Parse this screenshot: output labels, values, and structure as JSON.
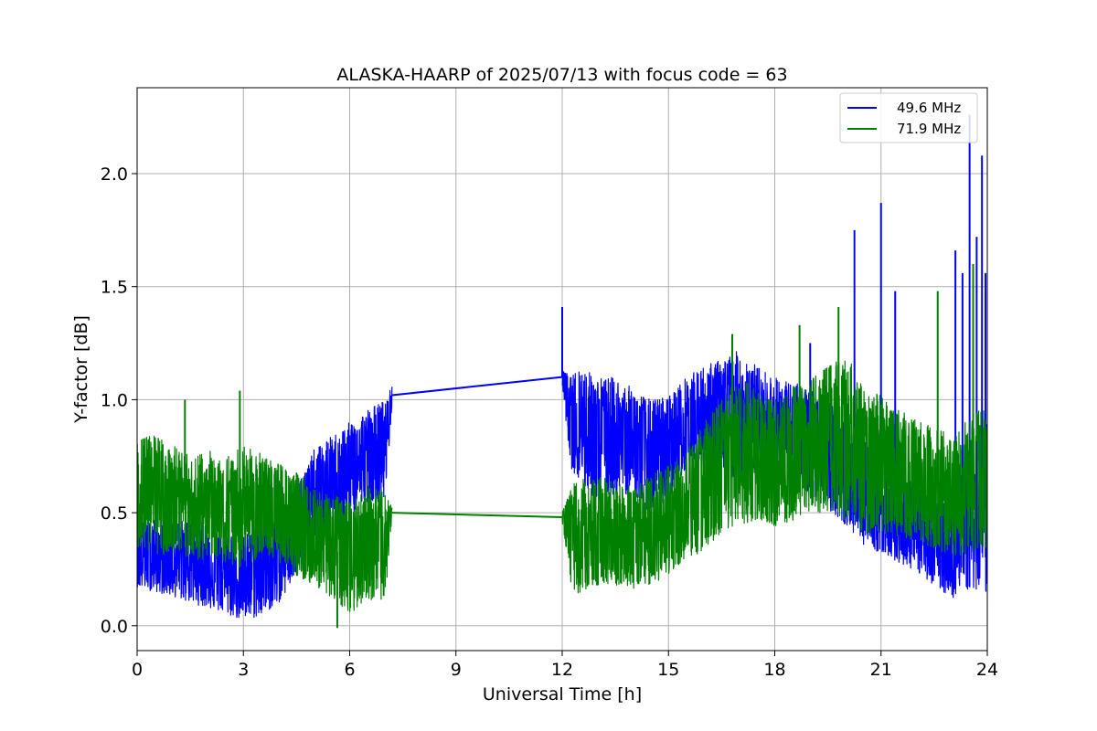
{
  "chart_data": {
    "type": "line",
    "title": "ALASKA-HAARP of 2025/07/13 with focus code = 63",
    "xlabel": "Universal Time [h]",
    "ylabel": "Y-factor [dB]",
    "xlim": [
      0,
      24
    ],
    "ylim": [
      -0.11,
      2.38
    ],
    "xticks": [
      0,
      3,
      6,
      9,
      12,
      15,
      18,
      21,
      24
    ],
    "xtick_labels": [
      "0",
      "3",
      "6",
      "9",
      "12",
      "15",
      "18",
      "21",
      "24"
    ],
    "yticks": [
      0.0,
      0.5,
      1.0,
      1.5,
      2.0
    ],
    "ytick_labels": [
      "0.0",
      "0.5",
      "1.0",
      "1.5",
      "2.0"
    ],
    "grid": true,
    "legend_position": "top-right",
    "series": [
      {
        "name": "49.6 MHz",
        "color": "#0000ff",
        "x": [
          0.0,
          0.5,
          1.0,
          1.5,
          2.0,
          2.5,
          3.0,
          3.5,
          4.0,
          4.5,
          5.0,
          5.5,
          6.0,
          6.5,
          7.0,
          7.2,
          12.0,
          12.25,
          12.5,
          13.0,
          13.5,
          14.0,
          14.5,
          15.0,
          15.5,
          16.0,
          16.5,
          17.0,
          17.5,
          18.0,
          18.5,
          19.0,
          19.5,
          20.0,
          20.5,
          21.0,
          21.5,
          22.0,
          22.5,
          23.0,
          23.5,
          24.0
        ],
        "y": [
          0.3,
          0.32,
          0.28,
          0.3,
          0.27,
          0.25,
          0.22,
          0.26,
          0.28,
          0.4,
          0.55,
          0.62,
          0.68,
          0.74,
          0.8,
          1.02,
          1.1,
          0.88,
          0.92,
          0.85,
          0.84,
          0.8,
          0.74,
          0.78,
          0.88,
          0.92,
          0.94,
          0.95,
          0.92,
          0.88,
          0.86,
          0.84,
          0.78,
          0.68,
          0.58,
          0.52,
          0.46,
          0.4,
          0.35,
          0.32,
          0.5,
          0.52
        ],
        "y_lower": [
          0.17,
          0.15,
          0.13,
          0.1,
          0.08,
          0.05,
          0.02,
          0.04,
          0.1,
          0.22,
          0.35,
          0.42,
          0.48,
          0.55,
          0.55,
          0.98,
          1.06,
          0.7,
          0.62,
          0.55,
          0.58,
          0.58,
          0.5,
          0.56,
          0.7,
          0.7,
          0.68,
          0.62,
          0.68,
          0.66,
          0.62,
          0.58,
          0.52,
          0.44,
          0.36,
          0.32,
          0.28,
          0.24,
          0.18,
          0.12,
          0.16,
          0.14
        ],
        "y_upper": [
          0.45,
          0.48,
          0.45,
          0.48,
          0.45,
          0.44,
          0.4,
          0.45,
          0.5,
          0.62,
          0.78,
          0.84,
          0.9,
          0.96,
          1.0,
          1.06,
          1.14,
          1.1,
          1.15,
          1.1,
          1.1,
          1.05,
          1.0,
          1.02,
          1.1,
          1.15,
          1.18,
          1.22,
          1.15,
          1.1,
          1.08,
          1.05,
          1.0,
          0.92,
          0.82,
          0.75,
          0.7,
          0.62,
          0.55,
          0.55,
          0.8,
          0.9
        ],
        "spikes": [
          [
            12.0,
            1.41
          ],
          [
            19.0,
            1.25
          ],
          [
            20.25,
            1.75
          ],
          [
            21.0,
            1.87
          ],
          [
            21.4,
            1.48
          ],
          [
            23.1,
            1.66
          ],
          [
            23.3,
            1.56
          ],
          [
            23.5,
            2.26
          ],
          [
            23.7,
            1.72
          ],
          [
            23.85,
            2.08
          ],
          [
            23.95,
            1.56
          ]
        ]
      },
      {
        "name": "71.9 MHz",
        "color": "#008000",
        "x": [
          0.0,
          0.5,
          1.0,
          1.5,
          2.0,
          2.5,
          3.0,
          3.5,
          4.0,
          4.5,
          5.0,
          5.5,
          6.0,
          6.5,
          7.0,
          7.2,
          12.0,
          12.25,
          12.5,
          13.0,
          13.5,
          14.0,
          14.5,
          15.0,
          15.5,
          16.0,
          16.5,
          17.0,
          17.5,
          18.0,
          18.5,
          19.0,
          19.5,
          20.0,
          20.5,
          21.0,
          21.5,
          22.0,
          22.5,
          23.0,
          23.5,
          24.0
        ],
        "y": [
          0.55,
          0.58,
          0.54,
          0.5,
          0.52,
          0.48,
          0.55,
          0.52,
          0.5,
          0.45,
          0.4,
          0.34,
          0.3,
          0.38,
          0.36,
          0.5,
          0.48,
          0.4,
          0.38,
          0.42,
          0.4,
          0.38,
          0.42,
          0.46,
          0.52,
          0.6,
          0.66,
          0.74,
          0.7,
          0.68,
          0.72,
          0.76,
          0.8,
          0.82,
          0.72,
          0.7,
          0.66,
          0.64,
          0.62,
          0.58,
          0.62,
          0.66
        ],
        "y_lower": [
          0.35,
          0.32,
          0.3,
          0.28,
          0.3,
          0.28,
          0.25,
          0.3,
          0.28,
          0.22,
          0.18,
          0.12,
          0.05,
          0.12,
          0.1,
          0.48,
          0.46,
          0.15,
          0.14,
          0.18,
          0.18,
          0.16,
          0.18,
          0.22,
          0.28,
          0.32,
          0.38,
          0.44,
          0.46,
          0.44,
          0.46,
          0.5,
          0.5,
          0.46,
          0.4,
          0.4,
          0.38,
          0.38,
          0.34,
          0.3,
          0.32,
          0.34
        ],
        "y_upper": [
          0.82,
          0.85,
          0.8,
          0.75,
          0.78,
          0.75,
          0.8,
          0.76,
          0.72,
          0.68,
          0.62,
          0.58,
          0.55,
          0.62,
          0.6,
          0.52,
          0.5,
          0.62,
          0.65,
          0.66,
          0.64,
          0.62,
          0.66,
          0.72,
          0.78,
          0.9,
          1.0,
          1.1,
          1.05,
          1.0,
          1.06,
          1.1,
          1.15,
          1.2,
          1.08,
          1.02,
          0.96,
          0.92,
          0.88,
          0.84,
          0.92,
          0.98
        ],
        "spikes": [
          [
            1.35,
            1.0
          ],
          [
            2.9,
            1.04
          ],
          [
            5.65,
            -0.01
          ],
          [
            16.8,
            1.29
          ],
          [
            18.7,
            1.33
          ],
          [
            19.8,
            1.41
          ],
          [
            22.6,
            1.48
          ],
          [
            23.6,
            1.6
          ]
        ]
      }
    ]
  }
}
